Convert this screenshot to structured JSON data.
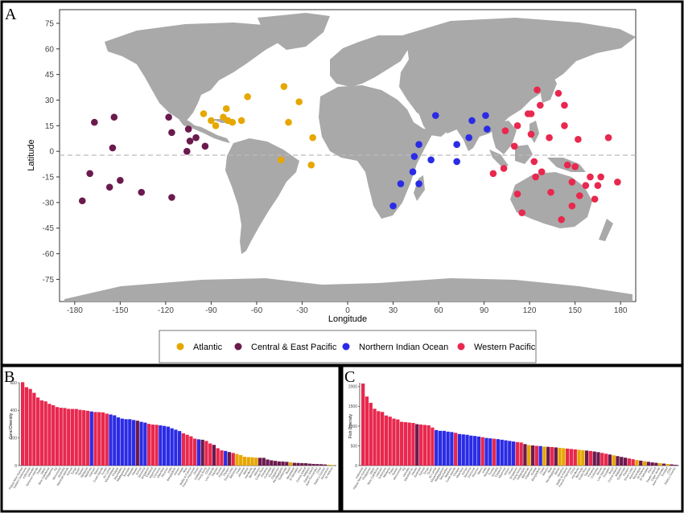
{
  "panels": {
    "a": "A",
    "b": "B",
    "c": "C"
  },
  "colors": {
    "atlantic": "#E6A700",
    "central_east_pacific": "#6B1A4E",
    "northern_indian_ocean": "#2B2BE6",
    "western_pacific": "#E8284E",
    "land": "#A9A9A9",
    "grid": "#EBEBEB"
  },
  "chart_data": [
    {
      "type": "scatter",
      "title": "",
      "xlabel": "Longitude",
      "ylabel": "Latitude",
      "xlim": [
        -190,
        190
      ],
      "ylim": [
        -88,
        83
      ],
      "xticks": [
        -180,
        -150,
        -120,
        -90,
        -60,
        -30,
        0,
        30,
        60,
        90,
        120,
        150,
        180
      ],
      "yticks": [
        -75,
        -60,
        -45,
        -30,
        -15,
        0,
        15,
        30,
        45,
        60,
        75
      ],
      "equator_dashed": true,
      "legend_position": "bottom",
      "series": [
        {
          "name": "Atlantic",
          "color_key": "atlantic",
          "points": [
            [
              -95,
              22
            ],
            [
              -90,
              18
            ],
            [
              -87,
              15
            ],
            [
              -82,
              20
            ],
            [
              -80,
              25
            ],
            [
              -79,
              18
            ],
            [
              -76,
              17
            ],
            [
              -66,
              32
            ],
            [
              -70,
              18
            ],
            [
              -42,
              38
            ],
            [
              -39,
              17
            ],
            [
              -32,
              29
            ],
            [
              -23,
              8
            ],
            [
              -24,
              -8
            ],
            [
              -44,
              -5
            ]
          ]
        },
        {
          "name": "Central & East Pacific",
          "color_key": "central_east_pacific",
          "points": [
            [
              -175,
              -29
            ],
            [
              -170,
              -13
            ],
            [
              -167,
              17
            ],
            [
              -157,
              -21
            ],
            [
              -155,
              2
            ],
            [
              -154,
              20
            ],
            [
              -150,
              -17
            ],
            [
              -136,
              -24
            ],
            [
              -118,
              20
            ],
            [
              -116,
              11
            ],
            [
              -116,
              -27
            ],
            [
              -105,
              13
            ],
            [
              -104,
              6
            ],
            [
              -100,
              8
            ],
            [
              -94,
              3
            ],
            [
              -106,
              0
            ]
          ]
        },
        {
          "name": "Northern Indian Ocean",
          "color_key": "northern_indian_ocean",
          "points": [
            [
              30,
              -32
            ],
            [
              35,
              -19
            ],
            [
              43,
              -12
            ],
            [
              44,
              -3
            ],
            [
              47,
              4
            ],
            [
              47,
              -19
            ],
            [
              55,
              -5
            ],
            [
              58,
              21
            ],
            [
              72,
              4
            ],
            [
              72,
              -6
            ],
            [
              80,
              8
            ],
            [
              82,
              18
            ],
            [
              91,
              21
            ],
            [
              92,
              13
            ]
          ]
        },
        {
          "name": "Western Pacific",
          "color_key": "western_pacific",
          "points": [
            [
              96,
              -13
            ],
            [
              103,
              -10
            ],
            [
              104,
              12
            ],
            [
              110,
              3
            ],
            [
              112,
              15
            ],
            [
              112,
              -25
            ],
            [
              115,
              -36
            ],
            [
              119,
              22
            ],
            [
              121,
              22
            ],
            [
              121,
              10
            ],
            [
              123,
              -6
            ],
            [
              124,
              -15
            ],
            [
              125,
              36
            ],
            [
              127,
              27
            ],
            [
              128,
              -12
            ],
            [
              133,
              8
            ],
            [
              134,
              -24
            ],
            [
              139,
              34
            ],
            [
              141,
              -40
            ],
            [
              143,
              27
            ],
            [
              143,
              15
            ],
            [
              145,
              -8
            ],
            [
              148,
              -18
            ],
            [
              148,
              -32
            ],
            [
              150,
              -9
            ],
            [
              152,
              7
            ],
            [
              153,
              -26
            ],
            [
              157,
              -20
            ],
            [
              160,
              -15
            ],
            [
              163,
              -28
            ],
            [
              165,
              -20
            ],
            [
              167,
              -15
            ],
            [
              172,
              8
            ],
            [
              178,
              -18
            ]
          ]
        }
      ]
    },
    {
      "type": "bar",
      "ylabel": "Coral Diversity",
      "yticks": [
        0,
        200,
        400,
        600
      ],
      "ylim": [
        0,
        600
      ],
      "values": [
        604,
        568,
        555,
        527,
        493,
        472,
        465,
        447,
        437,
        424,
        419,
        417,
        411,
        410,
        410,
        404,
        401,
        397,
        392,
        388,
        387,
        385,
        376,
        370,
        364,
        349,
        340,
        336,
        336,
        330,
        325,
        317,
        311,
        302,
        297,
        295,
        291,
        287,
        282,
        270,
        260,
        250,
        234,
        223,
        212,
        195,
        190,
        187,
        178,
        160,
        150,
        126,
        110,
        106,
        98,
        91,
        84,
        76,
        64,
        61,
        60,
        57,
        56,
        56,
        44,
        38,
        34,
        30,
        29,
        27,
        24,
        20,
        19,
        18,
        17,
        14,
        12,
        11,
        10,
        8,
        6,
        4
      ],
      "groups": [
        "W",
        "W",
        "W",
        "W",
        "W",
        "W",
        "W",
        "W",
        "W",
        "W",
        "W",
        "W",
        "W",
        "W",
        "W",
        "W",
        "W",
        "W",
        "N",
        "W",
        "W",
        "W",
        "W",
        "N",
        "N",
        "N",
        "N",
        "N",
        "N",
        "N",
        "C",
        "N",
        "N",
        "W",
        "W",
        "W",
        "N",
        "N",
        "N",
        "N",
        "N",
        "N",
        "W",
        "W",
        "W",
        "W",
        "N",
        "C",
        "W",
        "W",
        "C",
        "W",
        "W",
        "N",
        "C",
        "W",
        "A",
        "A",
        "A",
        "A",
        "A",
        "A",
        "C",
        "C",
        "C",
        "C",
        "C",
        "C",
        "C",
        "C",
        "A",
        "C",
        "C",
        "C",
        "C",
        "C",
        "C",
        "C",
        "C",
        "C",
        "A",
        "A"
      ],
      "tick_labels": [
        "Papua New Guinea",
        "Eastern Solomons",
        "Indonesia",
        "Vanuatu",
        "Solomon Islands",
        "Palau",
        "Japan",
        "New Caledonia",
        "Philippines",
        "Fiji",
        "Micronesia",
        "Australia",
        "Marshall Islands",
        "Samoa",
        "Tonga",
        "Guam",
        "Taiwan",
        "Malaysia",
        "Maldives",
        "Vietnam",
        "Nauru",
        "Cook Islands",
        "Tuvalu",
        "Sri Lanka",
        "Mozambique",
        "Chagos",
        "Seychelles",
        "Madagascar",
        "Somalia",
        "Mayotte",
        "Hawaii",
        "Kenya",
        "Tanzania",
        "Singapore",
        "Thailand",
        "Myanmar",
        "Comoros",
        "Mauritius",
        "Reunion",
        "India",
        "Bangladesh",
        "Yemen",
        "Kiribati",
        "Niue",
        "Wallis & Futuna",
        "French Polynesia",
        "Oman",
        "Galapagos",
        "Hong Kong",
        "China",
        "Line Islands",
        "Tokelau",
        "Brunei",
        "Pakistan",
        "Pitcairn",
        "Timor-Leste",
        "Bahamas",
        "Cuba",
        "Jamaica",
        "Belize",
        "Honduras",
        "Bermuda",
        "Mexico",
        "Costa Rica",
        "Panama",
        "Colombia",
        "Ecuador",
        "Clipperton",
        "Revillagigedo",
        "Guatemala",
        "Brazil",
        "Nicaragua",
        "El Salvador",
        "Peru",
        "Cocos Island",
        "Malpelo",
        "Easter Island",
        "Juan Fernandez",
        "Chile",
        "Salas y Gomez",
        "Ascension",
        "St Helena"
      ]
    },
    {
      "type": "bar",
      "ylabel": "Fish Diversity",
      "yticks": [
        0,
        500,
        1000,
        1500,
        2000
      ],
      "ylim": [
        0,
        2100
      ],
      "values": [
        2080,
        1750,
        1590,
        1440,
        1380,
        1360,
        1270,
        1240,
        1190,
        1170,
        1110,
        1100,
        1090,
        1080,
        1050,
        1040,
        1030,
        1020,
        965,
        900,
        880,
        880,
        860,
        850,
        830,
        800,
        790,
        780,
        760,
        750,
        735,
        720,
        700,
        690,
        680,
        670,
        655,
        640,
        625,
        610,
        595,
        585,
        545,
        520,
        510,
        500,
        495,
        480,
        475,
        470,
        460,
        450,
        440,
        430,
        420,
        410,
        400,
        390,
        380,
        370,
        355,
        340,
        320,
        300,
        280,
        260,
        240,
        220,
        200,
        180,
        160,
        140,
        125,
        110,
        95,
        80,
        70,
        60,
        50,
        40,
        30,
        20
      ],
      "groups": [
        "W",
        "W",
        "W",
        "W",
        "W",
        "W",
        "W",
        "W",
        "W",
        "W",
        "W",
        "W",
        "W",
        "W",
        "C",
        "W",
        "W",
        "W",
        "W",
        "N",
        "N",
        "N",
        "N",
        "N",
        "W",
        "N",
        "N",
        "N",
        "N",
        "N",
        "N",
        "W",
        "N",
        "N",
        "W",
        "N",
        "N",
        "N",
        "N",
        "N",
        "W",
        "W",
        "C",
        "A",
        "C",
        "W",
        "N",
        "A",
        "C",
        "W",
        "C",
        "A",
        "A",
        "W",
        "W",
        "W",
        "A",
        "A",
        "C",
        "W",
        "C",
        "C",
        "W",
        "W",
        "C",
        "A",
        "C",
        "C",
        "C",
        "W",
        "W",
        "A",
        "C",
        "A",
        "C",
        "C",
        "C",
        "A",
        "C",
        "A",
        "C",
        "C"
      ],
      "tick_labels": [
        "Indonesia",
        "Papua New Guinea",
        "Philippines",
        "Japan",
        "New Caledonia",
        "Vietnam",
        "Solomons",
        "Malaysia",
        "Palau",
        "Taiwan",
        "Micronesia",
        "Fiji",
        "Vanuatu",
        "Marshall Isl.",
        "Hawaii",
        "Australia",
        "Samoa",
        "Tonga",
        "Guam",
        "Sri Lanka",
        "Mozambique",
        "Madagascar",
        "Seychelles",
        "Maldives",
        "Cook Islands",
        "Chagos",
        "Mauritius",
        "Kenya",
        "Tanzania",
        "Comoros",
        "Reunion",
        "Nauru",
        "India",
        "Mayotte",
        "Tuvalu",
        "Somalia",
        "Thailand",
        "Myanmar",
        "Yemen",
        "Oman",
        "Singapore",
        "Hong Kong",
        "Galapagos",
        "Bahamas",
        "Clipperton",
        "Kiribati",
        "Bangladesh",
        "Cuba",
        "Mexico",
        "Niue",
        "Revillagigedo",
        "Belize",
        "Jamaica",
        "Wallis & Futuna",
        "French Polynesia",
        "China",
        "Honduras",
        "Bermuda",
        "Costa Rica",
        "Tokelau",
        "Panama",
        "Colombia",
        "Brunei",
        "Line Islands",
        "Ecuador",
        "Brazil",
        "Cocos Island",
        "Malpelo",
        "Guatemala",
        "Pitcairn",
        "Timor-Leste",
        "Ascension",
        "Nicaragua",
        "St Helena",
        "El Salvador",
        "Peru",
        "Easter Island",
        "Cape Verde",
        "Juan Fernandez",
        "Trinidad",
        "Chile",
        "Salas y Gomez"
      ]
    }
  ]
}
